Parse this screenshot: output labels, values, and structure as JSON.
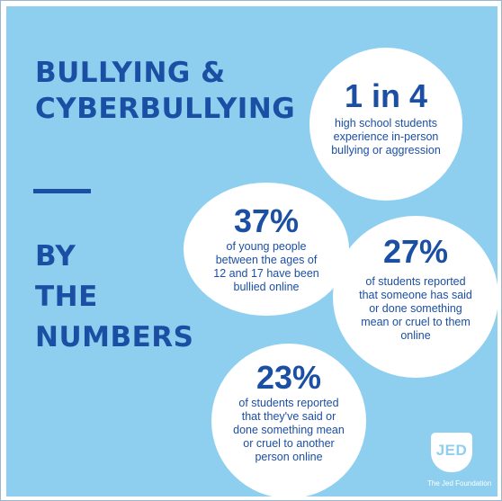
{
  "headline": {
    "lines": [
      "BULLYING &",
      "CYBERBULLYING"
    ]
  },
  "subheadline": {
    "lines": [
      "BY",
      "THE",
      "NUMBERS"
    ]
  },
  "stats": [
    {
      "value": "1 in 4",
      "description": [
        "high school students",
        "experience in-person",
        "bullying or aggression"
      ]
    },
    {
      "value": "37%",
      "description": [
        "of young people",
        "between the ages of",
        "12 and 17 have been",
        "bullied online"
      ]
    },
    {
      "value": "27%",
      "description": [
        "of students reported",
        "that someone has said",
        "or done something",
        "mean or cruel to them",
        "online"
      ]
    },
    {
      "value": "23%",
      "description": [
        "of students reported",
        "that they've said or",
        "done something mean",
        "or cruel to another",
        "person online"
      ]
    }
  ],
  "branding": {
    "logo_text": "JED",
    "organization": "The Jed Foundation"
  },
  "colors": {
    "background": "#8ecff0",
    "accent": "#1b4fa3",
    "circle": "#ffffff"
  }
}
